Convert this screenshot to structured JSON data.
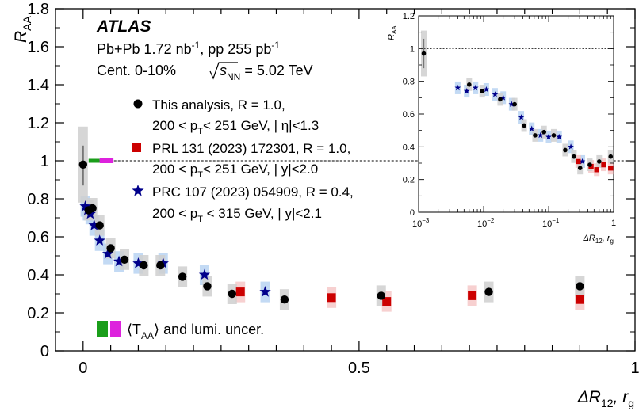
{
  "chart_data": [
    {
      "type": "scatter",
      "xlabel_main": "ΔR",
      "xlabel_sub": "12",
      "xlabel_tail": ", r",
      "xlabel_tail_sub": "g",
      "ylabel_main": "R",
      "ylabel_sub": "AA",
      "xlim": [
        -0.05,
        1.0
      ],
      "ylim": [
        0,
        1.8
      ],
      "xticks": [
        0,
        0.5,
        1
      ],
      "xtick_labels": [
        "0",
        "0.5",
        "1"
      ],
      "yticks": [
        0,
        0.2,
        0.4,
        0.6,
        0.8,
        1,
        1.2,
        1.4,
        1.6,
        1.8
      ],
      "ytick_labels": [
        "0",
        "0.2",
        "0.4",
        "0.6",
        "0.8",
        "1",
        "1.2",
        "1.4",
        "1.6",
        "1.8"
      ],
      "reference_line": 1,
      "legend_position": "top-right",
      "annotations": {
        "experiment": "ATLAS",
        "line1a": "Pb+Pb  1.72 nb",
        "line1a_sup": "-1",
        "line1b": ", pp  255 pb",
        "line1b_sup": "-1",
        "line2a": "Cent. 0-10%",
        "line2_sqrt": "s",
        "line2_sub": "NN",
        "line2b": " = 5.02 TeV",
        "lumi_label": "⟨T",
        "lumi_label_sub": "AA",
        "lumi_label_tail": "⟩ and lumi. uncer."
      },
      "legend": [
        {
          "line1": "This analysis, R = 1.0,",
          "line2a": "200 < p",
          "line2sub": "T",
          "line2b": "< 251 GeV, | η|<1.3"
        },
        {
          "line1": "PRL 131 (2023) 172301, R = 1.0,",
          "line2a": "200 < p",
          "line2sub": "T",
          "line2b": "< 251 GeV, | y|<2.0"
        },
        {
          "line1": "PRC 107 (2023) 054909, R = 0.4,",
          "line2a": "200 < p",
          "line2sub": "T",
          "line2b": " < 315 GeV, | y|<2.1"
        }
      ],
      "series": [
        {
          "marker": "circle",
          "color": "#000000",
          "band_color": "#cfcfcf",
          "x": [
            0.0,
            0.01,
            0.017,
            0.03,
            0.05,
            0.075,
            0.11,
            0.14,
            0.18,
            0.225,
            0.27,
            0.365,
            0.54,
            0.735,
            0.9
          ],
          "y": [
            0.98,
            0.74,
            0.75,
            0.66,
            0.54,
            0.48,
            0.45,
            0.45,
            0.39,
            0.34,
            0.3,
            0.27,
            0.29,
            0.31,
            0.34
          ]
        },
        {
          "marker": "square",
          "color": "#cc0000",
          "band_color": "#f6c8c8",
          "x": [
            0.285,
            0.45,
            0.55,
            0.705,
            0.9
          ],
          "y": [
            0.31,
            0.28,
            0.26,
            0.29,
            0.27
          ]
        },
        {
          "marker": "star",
          "color": "#00008b",
          "band_color": "#b9d4f2",
          "x": [
            0.004,
            0.008,
            0.013,
            0.02,
            0.03,
            0.045,
            0.065,
            0.1,
            0.145,
            0.22,
            0.33
          ],
          "y": [
            0.76,
            0.74,
            0.72,
            0.66,
            0.58,
            0.51,
            0.47,
            0.46,
            0.46,
            0.4,
            0.31
          ]
        }
      ],
      "lumi_boxes": [
        {
          "color": "#1a9e1a"
        },
        {
          "color": "#dd22dd"
        }
      ]
    },
    {
      "type": "scatter",
      "inset": true,
      "xscale": "log",
      "xlabel_main": "ΔR",
      "xlabel_sub": "12",
      "xlabel_tail": ", r",
      "xlabel_tail_sub": "g",
      "ylabel_main": "R",
      "ylabel_sub": "AA",
      "xlim": [
        0.001,
        1
      ],
      "ylim": [
        0,
        1.2
      ],
      "xticks": [
        0.001,
        0.01,
        0.1,
        1
      ],
      "xtick_base": "10",
      "xtick_exps": [
        "−3",
        "−2",
        "−1",
        ""
      ],
      "xtick_plain": [
        "",
        "",
        "",
        "1"
      ],
      "yticks": [
        0,
        0.2,
        0.4,
        0.6,
        0.8,
        1,
        1.2
      ],
      "ytick_labels": [
        "0",
        "0.2",
        "0.4",
        "0.6",
        "0.8",
        "1",
        "1.2"
      ],
      "reference_line": 1,
      "series": [
        {
          "marker": "circle",
          "color": "#000000",
          "band_color": "#cfcfcf",
          "x": [
            0.0012,
            0.006,
            0.0095,
            0.018,
            0.03,
            0.042,
            0.062,
            0.085,
            0.12,
            0.18,
            0.245,
            0.305,
            0.43,
            0.6,
            0.9
          ],
          "y": [
            0.97,
            0.78,
            0.74,
            0.69,
            0.66,
            0.53,
            0.47,
            0.49,
            0.47,
            0.38,
            0.34,
            0.27,
            0.29,
            0.31,
            0.34
          ]
        },
        {
          "marker": "square",
          "color": "#cc0000",
          "band_color": "#f6c8c8",
          "x": [
            0.285,
            0.45,
            0.55,
            0.705,
            0.9
          ],
          "y": [
            0.31,
            0.28,
            0.26,
            0.29,
            0.27
          ]
        },
        {
          "marker": "star",
          "color": "#00008b",
          "band_color": "#b9d4f2",
          "x": [
            0.004,
            0.0055,
            0.0075,
            0.011,
            0.015,
            0.02,
            0.027,
            0.038,
            0.055,
            0.075,
            0.1,
            0.145,
            0.22,
            0.33
          ],
          "y": [
            0.76,
            0.74,
            0.76,
            0.75,
            0.72,
            0.7,
            0.66,
            0.58,
            0.51,
            0.47,
            0.46,
            0.46,
            0.4,
            0.31
          ]
        }
      ]
    }
  ]
}
